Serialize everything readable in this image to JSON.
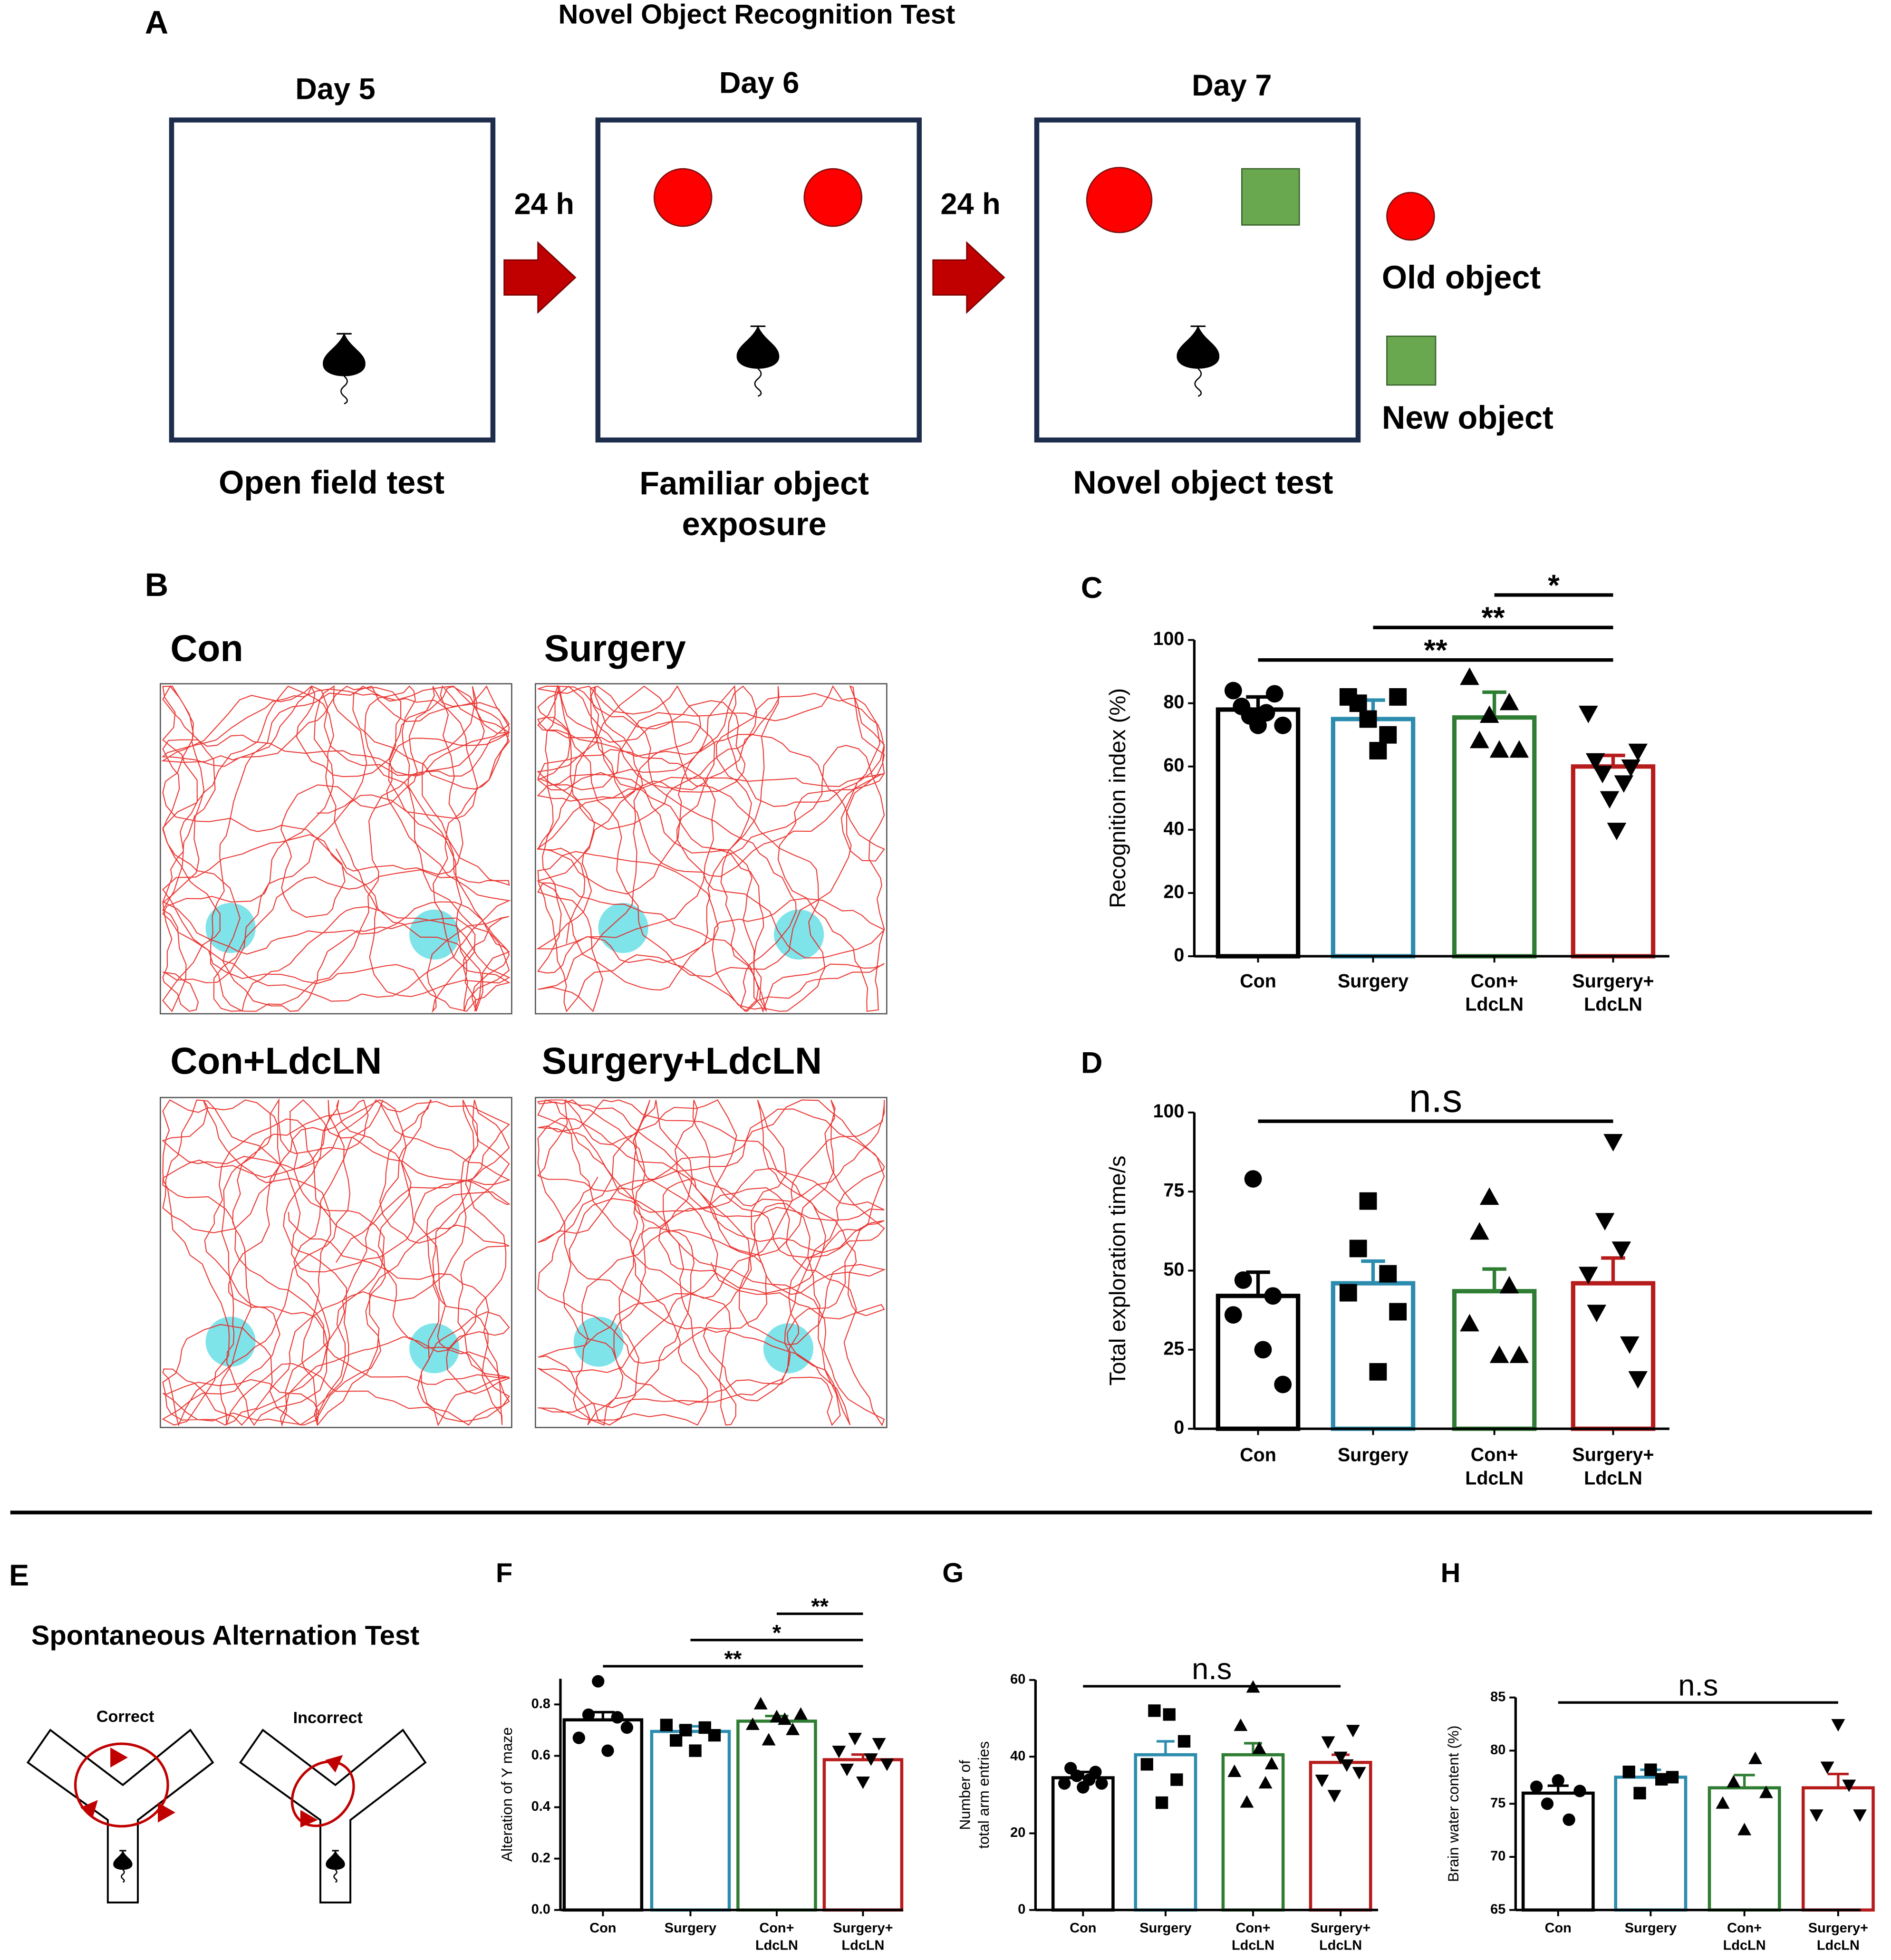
{
  "figure": {
    "panel_a": {
      "letter": "A",
      "title": "Novel Object Recognition Test",
      "days": [
        "Day 5",
        "Day 6",
        "Day 7"
      ],
      "intervals": [
        "24 h",
        "24 h"
      ],
      "captions": [
        "Open field test",
        "Familiar object\nexposure",
        "Novel object test"
      ],
      "legend": [
        "Old object",
        "New object"
      ]
    },
    "panel_b": {
      "letter": "B",
      "groups": [
        "Con",
        "Surgery",
        "Con+LdcLN",
        "Surgery+LdcLN"
      ]
    },
    "panel_e": {
      "letter": "E",
      "title": "Spontaneous Alternation Test",
      "mazes": [
        "Correct",
        "Incorrect"
      ]
    }
  },
  "chart_data": [
    {
      "panel": "C",
      "type": "bar",
      "ylabel": "Recognition index (%)",
      "categories": [
        "Con",
        "Surgery",
        "Con+\nLdcLN",
        "Surgery+\nLdcLN"
      ],
      "values": [
        78,
        75,
        75.5,
        60
      ],
      "errors": [
        4,
        6,
        8,
        3.5
      ],
      "points": [
        [
          84,
          79,
          76,
          73,
          77,
          83,
          73
        ],
        [
          82,
          80,
          75,
          65,
          70,
          82
        ],
        [
          88,
          68,
          76,
          65,
          80,
          65
        ],
        [
          77,
          62,
          58,
          50,
          40,
          55,
          60,
          65
        ]
      ],
      "colors": [
        "#000000",
        "#2b8cae",
        "#2e7d32",
        "#b71c1c"
      ],
      "markers": [
        "circle",
        "square",
        "triangle-up",
        "triangle-down"
      ],
      "ylim": [
        0,
        100
      ],
      "yticks": [
        0,
        20,
        40,
        60,
        80,
        100
      ],
      "annotations": [
        "**",
        "**",
        "*"
      ]
    },
    {
      "panel": "D",
      "type": "bar",
      "ylabel": "Total exploration time/s",
      "categories": [
        "Con",
        "Surgery",
        "Con+\nLdcLN",
        "Surgery+\nLdcLN"
      ],
      "values": [
        42,
        46,
        43.5,
        46
      ],
      "errors": [
        7.5,
        7,
        7,
        8
      ],
      "points": [
        [
          36,
          47,
          79,
          25,
          42,
          14
        ],
        [
          43,
          57,
          72,
          18,
          49,
          37
        ],
        [
          33,
          62,
          73,
          23,
          45,
          23
        ],
        [
          49,
          37,
          66,
          91,
          57,
          27,
          16
        ]
      ],
      "colors": [
        "#000000",
        "#2b8cae",
        "#2e7d32",
        "#b71c1c"
      ],
      "markers": [
        "circle",
        "square",
        "triangle-up",
        "triangle-down"
      ],
      "ylim": [
        0,
        100
      ],
      "yticks": [
        0,
        25,
        50,
        75,
        100
      ],
      "annotations": [
        "n.s"
      ]
    },
    {
      "panel": "F",
      "type": "bar",
      "ylabel": "Alteration of Y maze",
      "categories": [
        "Con",
        "Surgery",
        "Con+\nLdcLN",
        "Surgery+\nLdcLN"
      ],
      "values": [
        0.74,
        0.695,
        0.735,
        0.585
      ],
      "errors": [
        0.03,
        0.02,
        0.02,
        0.02
      ],
      "points": [
        [
          0.67,
          0.76,
          0.89,
          0.62,
          0.75,
          0.71
        ],
        [
          0.72,
          0.66,
          0.7,
          0.62,
          0.71,
          0.68
        ],
        [
          0.72,
          0.8,
          0.66,
          0.75,
          0.74,
          0.7,
          0.76
        ],
        [
          0.62,
          0.55,
          0.67,
          0.5,
          0.59,
          0.65,
          0.57
        ]
      ],
      "colors": [
        "#000000",
        "#2b8cae",
        "#2e7d32",
        "#b71c1c"
      ],
      "markers": [
        "circle",
        "square",
        "triangle-up",
        "triangle-down"
      ],
      "ylim": [
        0,
        0.9
      ],
      "yticks": [
        {
          "value": 0,
          "label": "0.0"
        },
        0.2,
        0.4,
        0.6,
        0.8
      ],
      "annotations": [
        "**",
        "*",
        "**"
      ]
    },
    {
      "panel": "G",
      "type": "bar",
      "ylabel": "Number of\ntotal arm entries",
      "categories": [
        "Con",
        "Surgery",
        "Con+\nLdcLN",
        "Surgery+\nLdcLN"
      ],
      "values": [
        34.5,
        40.5,
        40.5,
        38.5
      ],
      "errors": [
        1.5,
        3.5,
        3,
        2
      ],
      "points": [
        [
          33,
          37,
          35,
          32,
          34,
          36,
          33
        ],
        [
          38,
          52,
          28,
          51,
          34,
          44
        ],
        [
          36,
          48,
          28,
          58,
          42,
          33,
          38
        ],
        [
          34,
          44,
          30,
          40,
          38,
          47,
          36
        ]
      ],
      "colors": [
        "#000000",
        "#2b8cae",
        "#2e7d32",
        "#b71c1c"
      ],
      "markers": [
        "circle",
        "square",
        "triangle-up",
        "triangle-down"
      ],
      "ylim": [
        0,
        60
      ],
      "yticks": [
        0,
        20,
        40,
        60
      ],
      "annotations": [
        "n.s"
      ]
    },
    {
      "panel": "H",
      "type": "bar",
      "ylabel": "Brain water content (%)",
      "categories": [
        "Con",
        "Surgery",
        "Con+\nLdcLN",
        "Surgery+\nLdcLN"
      ],
      "values": [
        76,
        77.5,
        76.5,
        76.5
      ],
      "errors": [
        0.7,
        0.7,
        1.2,
        1.3
      ],
      "points": [
        [
          76.6,
          75,
          77.2,
          73.5,
          76.2
        ],
        [
          78,
          76,
          78.2,
          77.3,
          77.5
        ],
        [
          75,
          77,
          72.5,
          79.2,
          76
        ],
        [
          74,
          78.5,
          82.5,
          76.8,
          74
        ]
      ],
      "colors": [
        "#000000",
        "#2b8cae",
        "#2e7d32",
        "#b71c1c"
      ],
      "markers": [
        "circle",
        "square",
        "triangle-up",
        "triangle-down"
      ],
      "ylim": [
        65,
        85
      ],
      "yticks": [
        65,
        70,
        75,
        80,
        85
      ],
      "annotations": [
        "n.s"
      ]
    }
  ]
}
